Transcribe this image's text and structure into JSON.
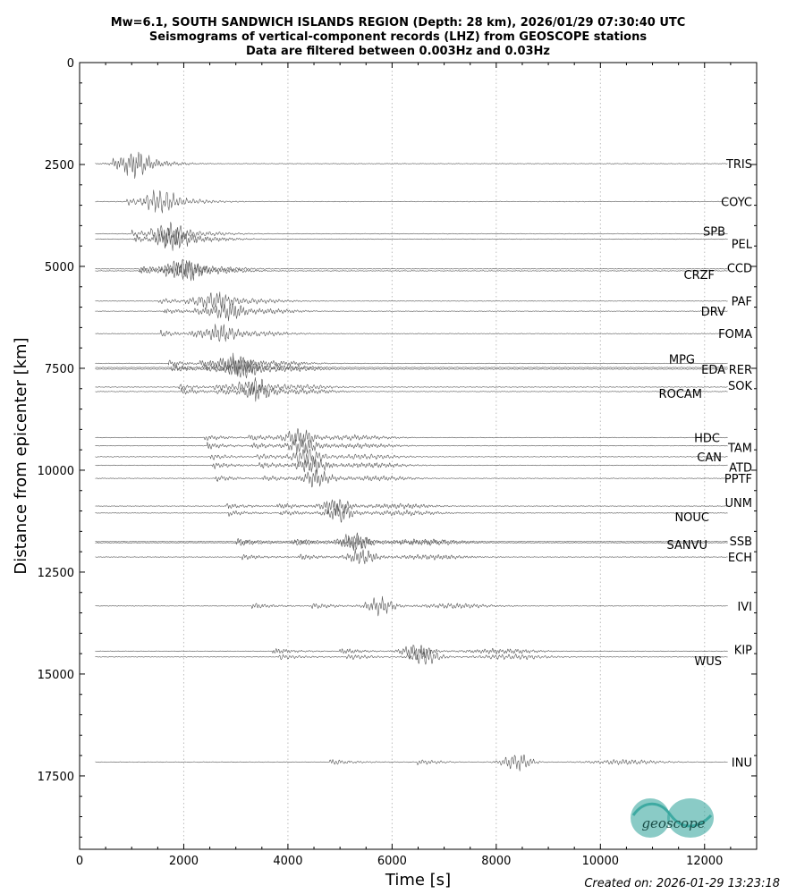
{
  "header": {
    "title_lines": [
      "Mw=6.1, SOUTH SANDWICH ISLANDS REGION (Depth: 28 km), 2026/01/29 07:30:40 UTC",
      "Seismograms of vertical-component records (LHZ) from GEOSCOPE stations",
      "Data are filtered between 0.003Hz and 0.03Hz"
    ]
  },
  "footer": {
    "created": "Created on: 2026-01-29 13:23:18"
  },
  "logo": {
    "text": "geoscope",
    "color": "#2aa198"
  },
  "chart_data": {
    "type": "line",
    "xlabel": "Time [s]",
    "ylabel": "Distance from epicenter [km]",
    "xlim": [
      0,
      13000
    ],
    "ylim": [
      0,
      19300
    ],
    "y_inverted": true,
    "xticks": [
      "0",
      "2000",
      "4000",
      "6000",
      "8000",
      "10000",
      "12000"
    ],
    "yticks": [
      "0",
      "2500",
      "5000",
      "7500",
      "10000",
      "12500",
      "15000",
      "17500"
    ],
    "grid": "vertical-dotted",
    "trace_color": "#555555",
    "stations": [
      {
        "name": "TRIS",
        "distance": 2480,
        "arrival": 620
      },
      {
        "name": "COYC",
        "distance": 3410,
        "arrival": 900
      },
      {
        "name": "SPB",
        "distance": 4200,
        "arrival": 1000
      },
      {
        "name": "PEL",
        "distance": 4330,
        "arrival": 1050
      },
      {
        "name": "CCD",
        "distance": 5060,
        "arrival": 1150
      },
      {
        "name": "CRZF",
        "distance": 5110,
        "arrival": 1180
      },
      {
        "name": "PAF",
        "distance": 5850,
        "arrival": 1500
      },
      {
        "name": "DRV",
        "distance": 6100,
        "arrival": 1620
      },
      {
        "name": "FOMA",
        "distance": 6650,
        "arrival": 1550
      },
      {
        "name": "MPG",
        "distance": 7380,
        "arrival": 1700
      },
      {
        "name": "EDA",
        "distance": 7480,
        "arrival": 1750
      },
      {
        "name": "RER",
        "distance": 7520,
        "arrival": 1800
      },
      {
        "name": "SOK",
        "distance": 7960,
        "arrival": 1900
      },
      {
        "name": "ROCAM",
        "distance": 8070,
        "arrival": 1950
      },
      {
        "name": "HDC",
        "distance": 9200,
        "arrival": 2400
      },
      {
        "name": "TAM",
        "distance": 9400,
        "arrival": 2450
      },
      {
        "name": "CAN",
        "distance": 9670,
        "arrival": 2500
      },
      {
        "name": "ATD",
        "distance": 9880,
        "arrival": 2550
      },
      {
        "name": "PPTF",
        "distance": 10200,
        "arrival": 2600
      },
      {
        "name": "UNM",
        "distance": 10880,
        "arrival": 2800
      },
      {
        "name": "NOUC",
        "distance": 11050,
        "arrival": 2850
      },
      {
        "name": "SSB",
        "distance": 11750,
        "arrival": 3000
      },
      {
        "name": "SANVU",
        "distance": 11780,
        "arrival": 3050
      },
      {
        "name": "ECH",
        "distance": 12130,
        "arrival": 3100
      },
      {
        "name": "IVI",
        "distance": 13330,
        "arrival": 3300
      },
      {
        "name": "KIP",
        "distance": 14440,
        "arrival": 3700
      },
      {
        "name": "WUS",
        "distance": 14580,
        "arrival": 3800
      },
      {
        "name": "INU",
        "distance": 17160,
        "arrival": 4800
      }
    ]
  }
}
